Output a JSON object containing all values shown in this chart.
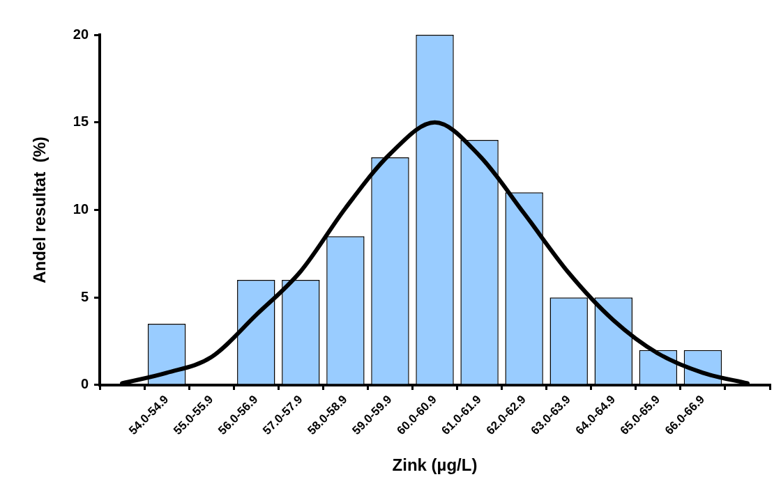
{
  "chart_data": {
    "type": "bar",
    "xlabel": "Zink (µg/L)",
    "ylabel": "Andel resultat  (%)",
    "categories": [
      null,
      "54.0-54.9",
      "55.0-55.9",
      "56.0-56.9",
      "57.0-57.9",
      "58.0-58.9",
      "59.0-59.9",
      "60.0-60.9",
      "61.0-61.9",
      "62.0-62.9",
      "63.0-63.9",
      "64.0-64.9",
      "65.0-65.9",
      "66.0-66.9",
      null
    ],
    "series": [
      {
        "color": "#99ccff",
        "values": [
          null,
          3.5,
          0,
          6,
          6,
          8.5,
          13,
          20,
          14,
          11,
          5,
          5,
          2,
          2,
          null
        ]
      },
      {
        "type": "line",
        "color": "#000000",
        "values": [
          0.1,
          0.7,
          1.6,
          4.0,
          6.5,
          10.1,
          13.2,
          15.0,
          13.1,
          9.8,
          6.4,
          3.7,
          1.8,
          0.7,
          0.1
        ]
      }
    ],
    "ylim": [
      0,
      20
    ],
    "yticks": [
      0,
      5,
      10,
      15,
      20
    ],
    "grid": false,
    "legend": false,
    "marker": "none",
    "line_style": "solid"
  }
}
